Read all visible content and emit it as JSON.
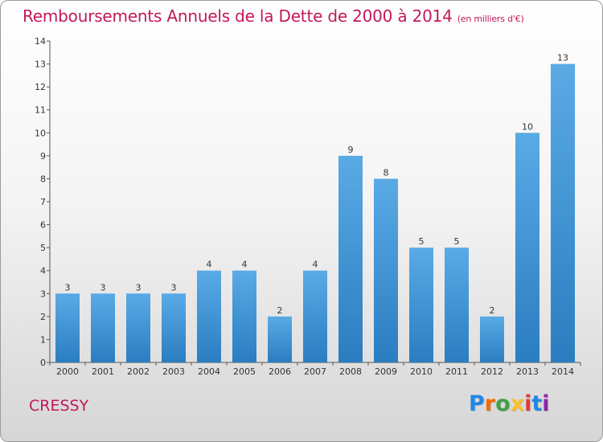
{
  "header": {
    "title": "Remboursements Annuels de la Dette de 2000 à 2014",
    "subtitle": "(en milliers d'€)"
  },
  "footer": {
    "commune": "CRESSY",
    "brand": {
      "text": "Proxiti",
      "letter_colors": [
        "#1e88e5",
        "#ef6c00",
        "#43a047",
        "#fbc02d",
        "#e53935",
        "#1e88e5",
        "#8e24aa"
      ]
    }
  },
  "colors": {
    "title": "#c2185b",
    "bar_top": "#5aaae6",
    "bar_bottom": "#2a7dc0"
  },
  "chart_data": {
    "type": "bar",
    "categories": [
      "2000",
      "2001",
      "2002",
      "2003",
      "2004",
      "2005",
      "2006",
      "2007",
      "2008",
      "2009",
      "2010",
      "2011",
      "2012",
      "2013",
      "2014"
    ],
    "values": [
      3,
      3,
      3,
      3,
      4,
      4,
      2,
      4,
      9,
      8,
      5,
      5,
      2,
      10,
      13
    ],
    "ylim": [
      0,
      14
    ],
    "yticks": [
      0,
      1,
      2,
      3,
      4,
      5,
      6,
      7,
      8,
      9,
      10,
      11,
      12,
      13,
      14
    ],
    "grid": false,
    "legend": "none",
    "data_labels": true
  }
}
